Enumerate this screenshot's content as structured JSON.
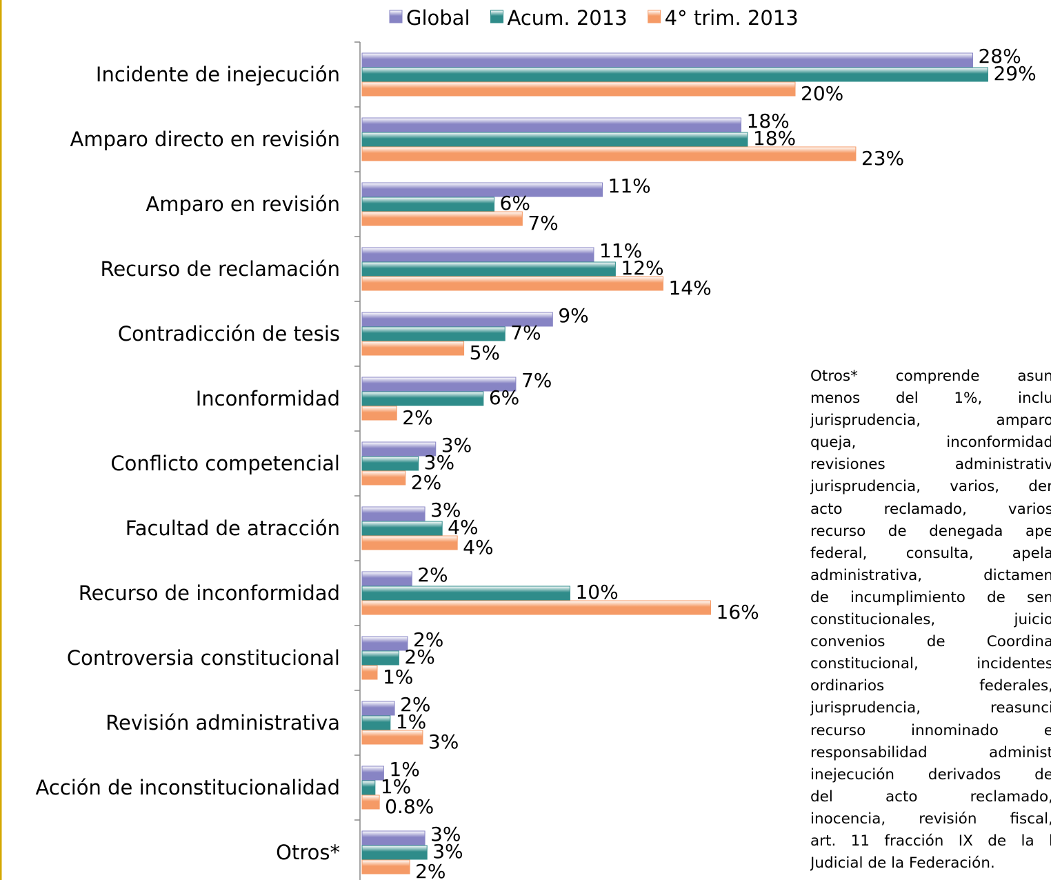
{
  "chart_data": {
    "type": "hbar",
    "categories": [
      "Incidente de inejecución",
      "Amparo directo en revisión",
      "Amparo en revisión",
      "Recurso de reclamación",
      "Contradicción de tesis",
      "Inconformidad",
      "Conflicto competencial",
      "Facultad de atracción",
      "Recurso de inconformidad",
      "Controversia constitucional",
      "Revisión administrativa",
      "Acción de inconstitucionalidad",
      "Otros*"
    ],
    "series": [
      {
        "name": "Global",
        "color": "#8784c4",
        "values": [
          28.2,
          17.5,
          11.1,
          10.7,
          8.8,
          7.1,
          3.4,
          2.9,
          2.3,
          2.1,
          1.5,
          1.0,
          2.9
        ],
        "value_labels": [
          "28%",
          "18%",
          "11%",
          "11%",
          "9%",
          "7%",
          "3%",
          "3%",
          "2%",
          "2%",
          "2%",
          "1%",
          "3%"
        ]
      },
      {
        "name": "Acum. 2013",
        "color": "#2f8c8a",
        "values": [
          28.9,
          17.8,
          6.1,
          11.7,
          6.6,
          5.6,
          2.6,
          3.7,
          9.6,
          1.7,
          1.3,
          0.6,
          3.0
        ],
        "value_labels": [
          "29%",
          "18%",
          "6%",
          "12%",
          "7%",
          "6%",
          "3%",
          "4%",
          "10%",
          "2%",
          "1%",
          "1%",
          "3%"
        ]
      },
      {
        "name": "4° trim. 2013",
        "color": "#f59a66",
        "values": [
          20.0,
          22.8,
          7.4,
          13.9,
          4.7,
          1.6,
          2.0,
          4.4,
          16.1,
          0.7,
          2.8,
          0.8,
          2.2
        ],
        "value_labels": [
          "20%",
          "23%",
          "7%",
          "14%",
          "5%",
          "2%",
          "2%",
          "4%",
          "16%",
          "1%",
          "3%",
          "0.8%",
          "2%"
        ]
      }
    ],
    "legend": "top",
    "note": [
      "Otros* comprende asun",
      "menos del 1%, inclu",
      "jurisprudencia, amparo",
      "queja, inconformidad",
      "revisiones administrativ",
      "jurisprudencia, varios, der",
      "acto reclamado, varios",
      "recurso de denegada ape",
      "federal, consulta, apela",
      "administrativa, dictamen",
      "de incumplimiento de sen",
      "constitucionales, juicio",
      "convenios de Coordina",
      "constitucional, incidentes",
      "ordinarios federales,",
      "jurisprudencia, reasunci",
      "recurso innominado e",
      "responsabilidad administ",
      "inejecución derivados de",
      "del acto reclamado,",
      "inocencia, revisión fiscal,",
      "art. 11 fracción IX de la l",
      "Judicial de la Federación."
    ]
  }
}
